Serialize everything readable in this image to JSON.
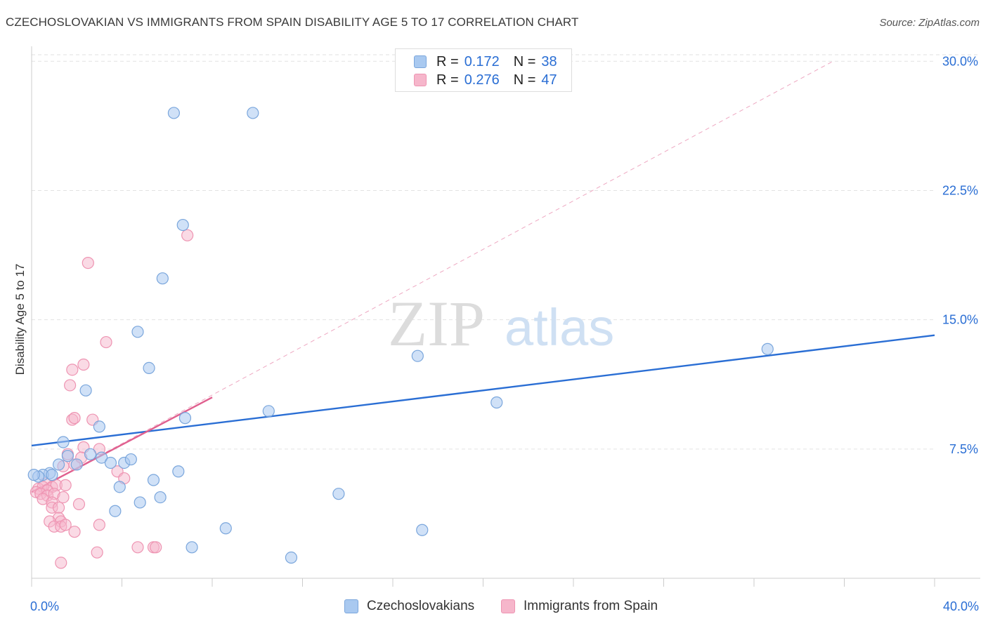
{
  "header": {
    "title": "CZECHOSLOVAKIAN VS IMMIGRANTS FROM SPAIN DISABILITY AGE 5 TO 17 CORRELATION CHART",
    "source": "Source: ZipAtlas.com"
  },
  "watermark": {
    "zip": "ZIP",
    "atlas": "atlas"
  },
  "legend": {
    "r_label": "R =",
    "n_label": "N =",
    "rows": [
      {
        "r": "0.172",
        "n": "38"
      },
      {
        "r": "0.276",
        "n": "47"
      }
    ]
  },
  "colors": {
    "blue_fill": "#a9c9f0",
    "blue_stroke": "#7aa6dc",
    "blue_line": "#2a6ed4",
    "pink_fill": "#f6b6cb",
    "pink_stroke": "#ee94b2",
    "pink_line": "#e0608f",
    "tick_text": "#2a6ed4",
    "grid": "#e2e2e2"
  },
  "chart_data": {
    "type": "scatter",
    "title": "CZECHOSLOVAKIAN VS IMMIGRANTS FROM SPAIN DISABILITY AGE 5 TO 17 CORRELATION CHART",
    "xlabel": "",
    "ylabel": "Disability Age 5 to 17",
    "xlim": [
      0,
      40
    ],
    "ylim": [
      0,
      30.5
    ],
    "x_tick_labels": [
      "0.0%",
      "40.0%"
    ],
    "y_ticks": [
      7.5,
      15.0,
      22.5,
      30.0
    ],
    "y_tick_labels": [
      "7.5%",
      "15.0%",
      "22.5%",
      "30.0%"
    ],
    "grid": true,
    "legend_position": "bottom",
    "series": [
      {
        "name": "Czechoslovakians",
        "points": [
          [
            6.3,
            27.0
          ],
          [
            9.8,
            27.0
          ],
          [
            6.7,
            20.5
          ],
          [
            5.8,
            17.4
          ],
          [
            4.7,
            14.3
          ],
          [
            5.2,
            12.2
          ],
          [
            2.4,
            10.9
          ],
          [
            6.8,
            9.3
          ],
          [
            3.0,
            8.8
          ],
          [
            10.5,
            9.7
          ],
          [
            17.1,
            12.9
          ],
          [
            20.6,
            10.2
          ],
          [
            32.6,
            13.3
          ],
          [
            1.4,
            7.9
          ],
          [
            1.6,
            7.1
          ],
          [
            2.6,
            7.2
          ],
          [
            3.1,
            7.0
          ],
          [
            3.5,
            6.7
          ],
          [
            4.1,
            6.7
          ],
          [
            4.4,
            6.9
          ],
          [
            2.0,
            6.6
          ],
          [
            1.2,
            6.6
          ],
          [
            0.8,
            6.1
          ],
          [
            0.5,
            6.0
          ],
          [
            0.9,
            6.0
          ],
          [
            0.3,
            5.9
          ],
          [
            5.4,
            5.7
          ],
          [
            6.5,
            6.2
          ],
          [
            3.9,
            5.3
          ],
          [
            5.7,
            4.7
          ],
          [
            13.6,
            4.9
          ],
          [
            4.8,
            4.4
          ],
          [
            3.7,
            3.9
          ],
          [
            8.6,
            2.9
          ],
          [
            17.3,
            2.8
          ],
          [
            7.1,
            1.8
          ],
          [
            11.5,
            1.2
          ],
          [
            0.1,
            6.0
          ]
        ],
        "trend": {
          "x": [
            0,
            40
          ],
          "y": [
            7.7,
            14.1
          ]
        }
      },
      {
        "name": "Immigrants from Spain",
        "points": [
          [
            6.9,
            19.9
          ],
          [
            2.5,
            18.3
          ],
          [
            3.3,
            13.7
          ],
          [
            2.3,
            12.4
          ],
          [
            1.8,
            12.1
          ],
          [
            1.7,
            11.2
          ],
          [
            1.8,
            9.2
          ],
          [
            1.9,
            9.3
          ],
          [
            2.7,
            9.2
          ],
          [
            2.3,
            7.6
          ],
          [
            3.0,
            7.5
          ],
          [
            1.6,
            7.2
          ],
          [
            1.4,
            6.5
          ],
          [
            1.9,
            6.6
          ],
          [
            2.2,
            7.0
          ],
          [
            3.8,
            6.2
          ],
          [
            4.1,
            5.8
          ],
          [
            0.6,
            5.5
          ],
          [
            0.9,
            5.3
          ],
          [
            1.1,
            5.4
          ],
          [
            1.5,
            5.4
          ],
          [
            0.3,
            5.2
          ],
          [
            0.5,
            5.3
          ],
          [
            0.7,
            5.1
          ],
          [
            0.2,
            5.0
          ],
          [
            0.4,
            4.9
          ],
          [
            0.7,
            4.8
          ],
          [
            1.0,
            4.9
          ],
          [
            0.5,
            4.6
          ],
          [
            0.9,
            4.4
          ],
          [
            1.4,
            4.7
          ],
          [
            2.1,
            4.3
          ],
          [
            0.9,
            4.1
          ],
          [
            1.2,
            4.1
          ],
          [
            1.2,
            3.5
          ],
          [
            1.3,
            3.3
          ],
          [
            0.8,
            3.3
          ],
          [
            1.0,
            3.0
          ],
          [
            1.3,
            3.0
          ],
          [
            1.5,
            3.1
          ],
          [
            3.0,
            3.1
          ],
          [
            1.9,
            2.7
          ],
          [
            4.7,
            1.8
          ],
          [
            5.4,
            1.8
          ],
          [
            5.5,
            1.8
          ],
          [
            2.9,
            1.5
          ],
          [
            1.3,
            0.9
          ]
        ],
        "trend": {
          "x": [
            0,
            8.0
          ],
          "y": [
            5.0,
            10.5
          ]
        },
        "trend_extended": {
          "x": [
            0,
            35.5
          ],
          "y": [
            5.0,
            30.0
          ]
        }
      }
    ]
  }
}
